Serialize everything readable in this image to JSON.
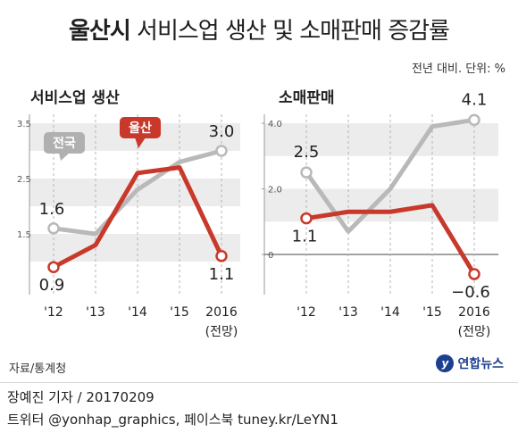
{
  "header": {
    "city": "울산시",
    "rest": "서비스업 생산 및 소매판매 증감률",
    "unit": "전년 대비. 단위: %"
  },
  "chart_data": [
    {
      "type": "line",
      "title": "서비스업 생산",
      "categories": [
        "'12",
        "'13",
        "'14",
        "'15",
        "2016"
      ],
      "category_note": "(전망)",
      "yticks": [
        1.5,
        2.5,
        3.5
      ],
      "ylim": [
        0.5,
        3.5
      ],
      "series": [
        {
          "name": "전국",
          "values": [
            1.6,
            1.5,
            2.3,
            2.8,
            3.0
          ],
          "color": "#b9b9b9",
          "value_labels": {
            "0": "1.6",
            "4": "3.0"
          }
        },
        {
          "name": "울산",
          "values": [
            0.9,
            1.3,
            2.6,
            2.7,
            1.1
          ],
          "color": "#c8392b",
          "value_labels": {
            "0": "0.9",
            "4": "1.1"
          }
        }
      ]
    },
    {
      "type": "line",
      "title": "소매판매",
      "categories": [
        "'12",
        "'13",
        "'14",
        "'15",
        "2016"
      ],
      "category_note": "(전망)",
      "yticks": [
        0,
        2.0,
        4.0
      ],
      "ylim": [
        -1.0,
        4.0
      ],
      "series": [
        {
          "name": "전국",
          "values": [
            2.5,
            0.7,
            2.0,
            3.9,
            4.1
          ],
          "color": "#b9b9b9",
          "value_labels": {
            "0": "2.5",
            "4": "4.1"
          }
        },
        {
          "name": "울산",
          "values": [
            1.1,
            1.3,
            1.3,
            1.5,
            -0.6
          ],
          "color": "#c8392b",
          "value_labels": {
            "0": "1.1",
            "4": "−0.6"
          }
        }
      ]
    }
  ],
  "footer": {
    "source": "자료/통계청",
    "logo_text": "연합뉴스",
    "reporter": "장예진 기자 / 20170209",
    "sns": "트위터 @yonhap_graphics, 페이스북 tuney.kr/LeYN1"
  },
  "colors": {
    "national": "#b9b9b9",
    "ulsan": "#c8392b",
    "band": "#ececec"
  }
}
